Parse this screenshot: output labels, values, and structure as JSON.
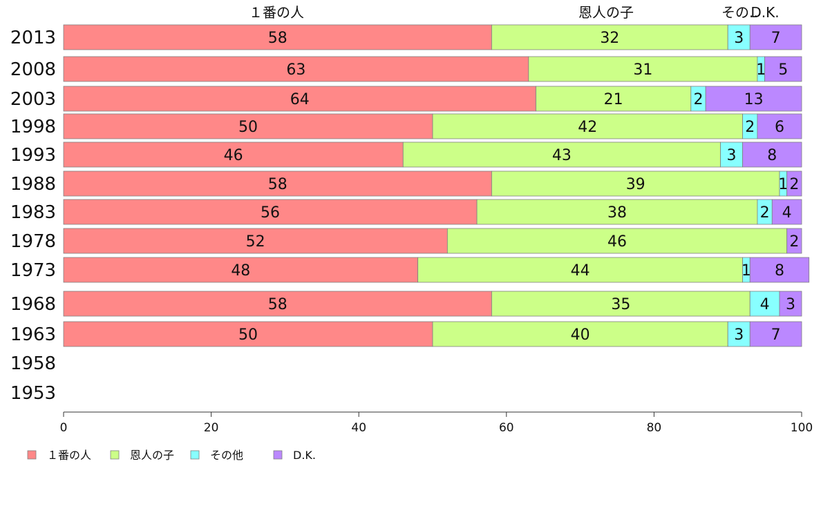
{
  "chart_data": {
    "type": "bar",
    "orientation": "horizontal",
    "stacked": true,
    "categories": [
      "2013",
      "2008",
      "2003",
      "1998",
      "1993",
      "1988",
      "1983",
      "1978",
      "1973",
      "1968",
      "1963",
      "1958",
      "1953"
    ],
    "series": [
      {
        "name": "１番の人",
        "color": "#ff8888",
        "values": [
          58,
          63,
          64,
          50,
          46,
          58,
          56,
          52,
          48,
          58,
          50,
          null,
          null
        ]
      },
      {
        "name": "恩人の子",
        "color": "#ccff88",
        "values": [
          32,
          31,
          21,
          42,
          43,
          39,
          38,
          46,
          44,
          35,
          40,
          null,
          null
        ]
      },
      {
        "name": "その他",
        "color": "#88ffff",
        "values": [
          3,
          1,
          2,
          2,
          3,
          1,
          2,
          0,
          1,
          4,
          3,
          null,
          null
        ]
      },
      {
        "name": "D.K.",
        "color": "#bb88ff",
        "values": [
          7,
          5,
          13,
          6,
          8,
          2,
          4,
          2,
          8,
          3,
          7,
          null,
          null
        ]
      }
    ],
    "column_headers": [
      "１番の人",
      "恩人の子",
      "その..",
      "D.K."
    ],
    "xlim": [
      0,
      100
    ],
    "xticks": [
      0,
      20,
      40,
      60,
      80,
      100
    ],
    "legend_position": "bottom-left",
    "grid": false
  }
}
